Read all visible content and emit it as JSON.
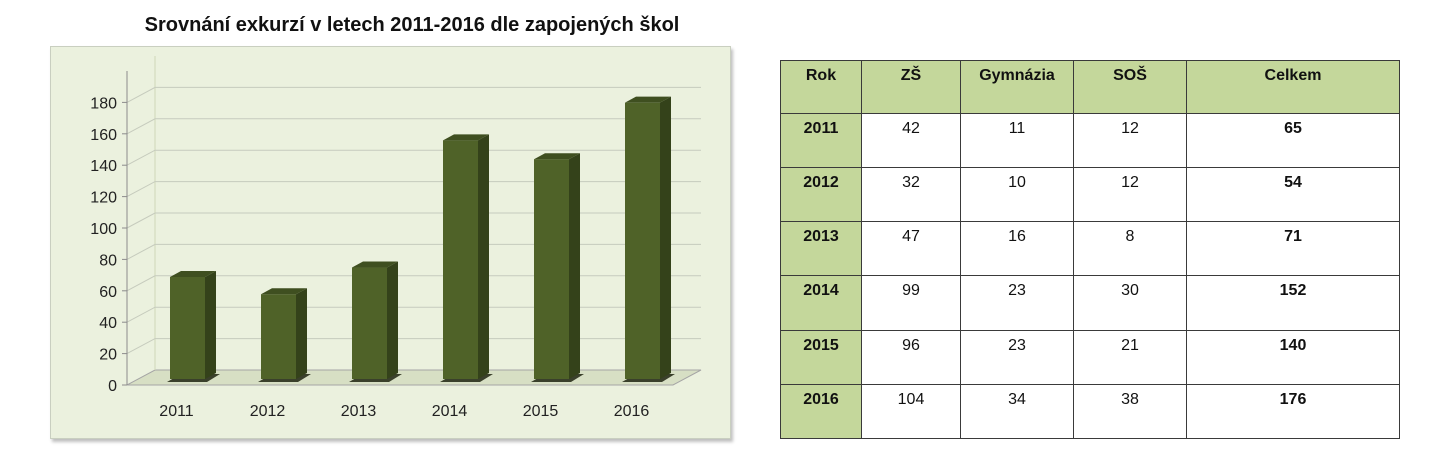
{
  "chart_data": {
    "type": "bar",
    "title": "Srovnání exkurzí v letech 2011-2016 dle zapojených škol",
    "categories": [
      "2011",
      "2012",
      "2013",
      "2014",
      "2015",
      "2016"
    ],
    "values": [
      65,
      54,
      71,
      152,
      140,
      176
    ],
    "yticks": [
      "0",
      "20",
      "40",
      "60",
      "80",
      "100",
      "120",
      "140",
      "160",
      "180"
    ],
    "ylim": [
      0,
      200
    ],
    "grid": true,
    "three_d": true,
    "bar_color": "#4f6228",
    "bar_side_color": "#34421a",
    "bar_top_color": "#3f4f20",
    "background_color": "#ebf1de"
  },
  "table": {
    "headers": [
      "Rok",
      "ZŠ",
      "Gymnázia",
      "SOŠ",
      "Celkem"
    ],
    "rows": [
      [
        "2011",
        "42",
        "11",
        "12",
        "65"
      ],
      [
        "2012",
        "32",
        "10",
        "12",
        "54"
      ],
      [
        "2013",
        "47",
        "16",
        "8",
        "71"
      ],
      [
        "2014",
        "99",
        "23",
        "30",
        "152"
      ],
      [
        "2015",
        "96",
        "23",
        "21",
        "140"
      ],
      [
        "2016",
        "104",
        "34",
        "38",
        "176"
      ]
    ],
    "header_color": "#c4d79b"
  }
}
